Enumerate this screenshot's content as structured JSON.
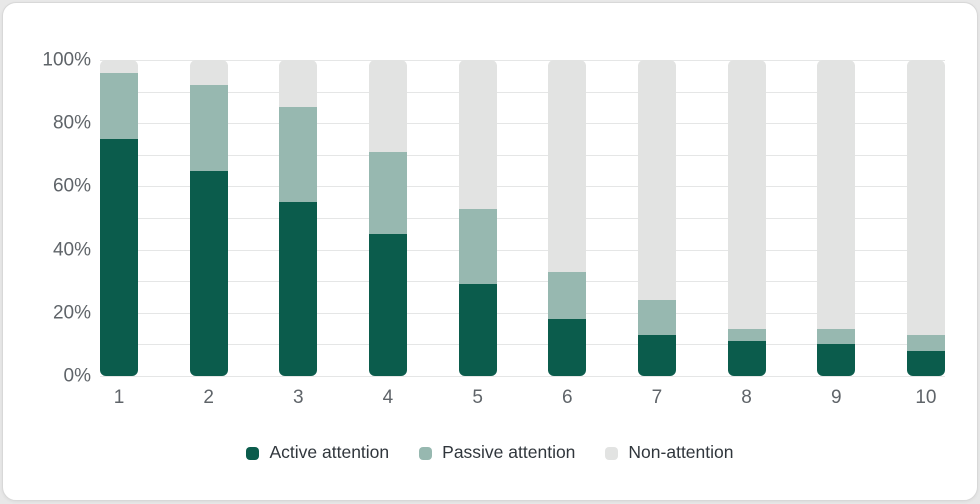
{
  "colors": {
    "active": "#0b5c4c",
    "passive": "#97b8b0",
    "non": "#e2e3e2",
    "grid": "#e5e6e6",
    "axis_text": "#5f6469",
    "legend_text": "#30363c",
    "card_bg": "#ffffff",
    "page_bg": "#e8e8e8",
    "card_border": "#d8d8d8"
  },
  "chart_data": {
    "type": "bar",
    "stacked": true,
    "title": "",
    "xlabel": "",
    "ylabel": "",
    "categories": [
      "1",
      "2",
      "3",
      "4",
      "5",
      "6",
      "7",
      "8",
      "9",
      "10"
    ],
    "series": [
      {
        "name": "Active attention",
        "color_key": "active",
        "values": [
          75,
          65,
          55,
          45,
          29,
          18,
          13,
          11,
          10,
          8
        ]
      },
      {
        "name": "Passive attention",
        "color_key": "passive",
        "values": [
          21,
          27,
          30,
          26,
          24,
          15,
          11,
          4,
          5,
          5
        ]
      },
      {
        "name": "Non-attention",
        "color_key": "non",
        "values": [
          4,
          8,
          15,
          29,
          47,
          67,
          76,
          85,
          85,
          87
        ]
      }
    ],
    "y_ticks": [
      "0%",
      "20%",
      "40%",
      "60%",
      "80%",
      "100%"
    ],
    "ylim": [
      0,
      100
    ],
    "grid_interval": 10,
    "grid": true,
    "legend_position": "bottom"
  }
}
